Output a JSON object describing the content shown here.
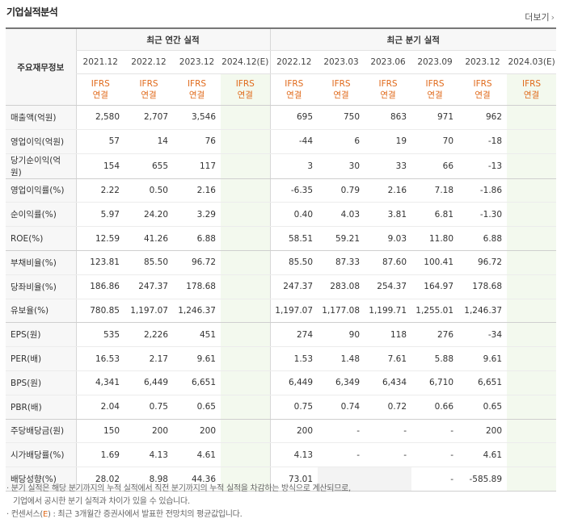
{
  "header": {
    "title": "기업실적분석",
    "more_label": "더보기"
  },
  "table": {
    "row_header": "주요재무정보",
    "groups": {
      "annual": "최근 연간 실적",
      "quarter": "최근 분기 실적"
    },
    "periods": [
      "2021.12",
      "2022.12",
      "2023.12",
      "2024.12(E)",
      "2022.12",
      "2023.03",
      "2023.06",
      "2023.09",
      "2023.12",
      "2024.03(E)"
    ],
    "standard": [
      "IFRS 연결",
      "IFRS 연결",
      "IFRS 연결",
      "IFRS 연결",
      "IFRS 연결",
      "IFRS 연결",
      "IFRS 연결",
      "IFRS 연결",
      "IFRS 연결",
      "IFRS 연결"
    ],
    "rows": [
      {
        "label": "매출액(억원)",
        "values": [
          "2,580",
          "2,707",
          "3,546",
          "",
          "695",
          "750",
          "863",
          "971",
          "962",
          ""
        ]
      },
      {
        "label": "영업이익(억원)",
        "values": [
          "57",
          "14",
          "76",
          "",
          "-44",
          "6",
          "19",
          "70",
          "-18",
          ""
        ]
      },
      {
        "label": "당기순이익(억원)",
        "values": [
          "154",
          "655",
          "117",
          "",
          "3",
          "30",
          "33",
          "66",
          "-13",
          ""
        ]
      },
      {
        "label": "영업이익률(%)",
        "values": [
          "2.22",
          "0.50",
          "2.16",
          "",
          "-6.35",
          "0.79",
          "2.16",
          "7.18",
          "-1.86",
          ""
        ]
      },
      {
        "label": "순이익률(%)",
        "values": [
          "5.97",
          "24.20",
          "3.29",
          "",
          "0.40",
          "4.03",
          "3.81",
          "6.81",
          "-1.30",
          ""
        ]
      },
      {
        "label": "ROE(%)",
        "values": [
          "12.59",
          "41.26",
          "6.88",
          "",
          "58.51",
          "59.21",
          "9.03",
          "11.80",
          "6.88",
          ""
        ]
      },
      {
        "label": "부채비율(%)",
        "values": [
          "123.81",
          "85.50",
          "96.72",
          "",
          "85.50",
          "87.33",
          "87.60",
          "100.41",
          "96.72",
          ""
        ]
      },
      {
        "label": "당좌비율(%)",
        "values": [
          "186.86",
          "247.37",
          "178.68",
          "",
          "247.37",
          "283.08",
          "254.37",
          "164.97",
          "178.68",
          ""
        ]
      },
      {
        "label": "유보율(%)",
        "values": [
          "780.85",
          "1,197.07",
          "1,246.37",
          "",
          "1,197.07",
          "1,177.08",
          "1,199.71",
          "1,255.01",
          "1,246.37",
          ""
        ]
      },
      {
        "label": "EPS(원)",
        "values": [
          "535",
          "2,226",
          "451",
          "",
          "274",
          "90",
          "118",
          "276",
          "-34",
          ""
        ]
      },
      {
        "label": "PER(배)",
        "values": [
          "16.53",
          "2.17",
          "9.61",
          "",
          "1.53",
          "1.48",
          "7.61",
          "5.88",
          "9.61",
          ""
        ]
      },
      {
        "label": "BPS(원)",
        "values": [
          "4,341",
          "6,449",
          "6,651",
          "",
          "6,449",
          "6,349",
          "6,434",
          "6,710",
          "6,651",
          ""
        ]
      },
      {
        "label": "PBR(배)",
        "values": [
          "2.04",
          "0.75",
          "0.65",
          "",
          "0.75",
          "0.74",
          "0.72",
          "0.66",
          "0.65",
          ""
        ]
      },
      {
        "label": "주당배당금(원)",
        "values": [
          "150",
          "200",
          "200",
          "",
          "200",
          "-",
          "-",
          "-",
          "200",
          ""
        ]
      },
      {
        "label": "시가배당률(%)",
        "values": [
          "1.69",
          "4.13",
          "4.61",
          "",
          "4.13",
          "-",
          "-",
          "-",
          "4.61",
          ""
        ]
      },
      {
        "label": "배당성향(%)",
        "values": [
          "28.02",
          "8.98",
          "44.36",
          "",
          "73.01",
          "",
          "",
          "-",
          "-585.89",
          ""
        ]
      }
    ]
  },
  "notes": {
    "line1": "· 분기 실적은 해당 분기까지의 누적 실적에서 직전 분기까지의 누적 실적을 차감하는 방식으로 계산되므로,",
    "line2": "  기업에서 공시한 분기 실적과 차이가 있을 수 있습니다.",
    "line3_prefix": "· 컨센서스(",
    "line3_e": "E",
    "line3_suffix": ") : 최근 3개월간 증권사에서 발표한 전망치의 평균값입니다."
  },
  "colors": {
    "accent_orange": "#e06a1b",
    "negative_red": "#e0261d",
    "estimate_bg": "#f3f9ee"
  }
}
